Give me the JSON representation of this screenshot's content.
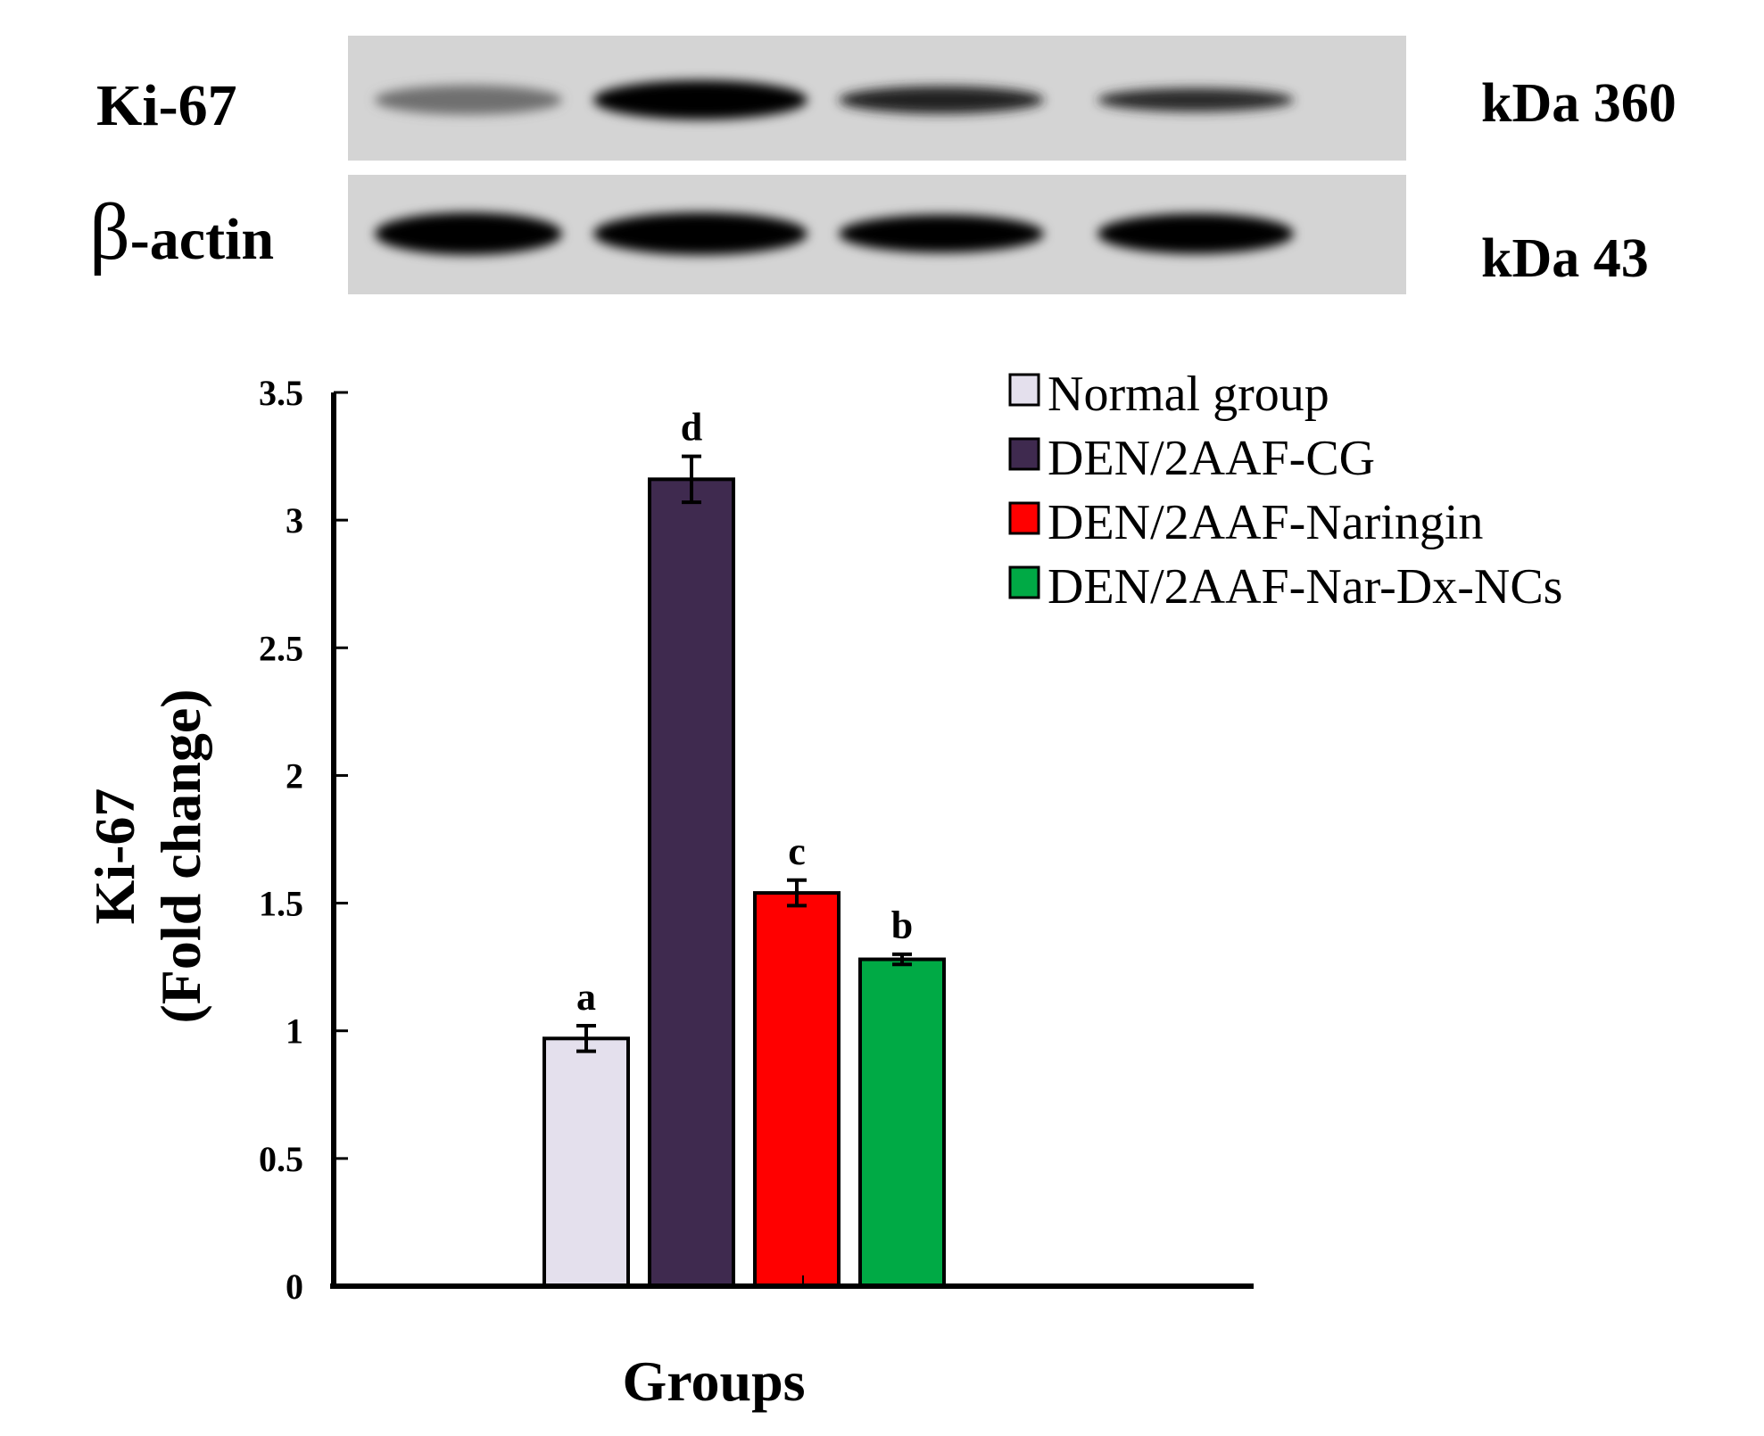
{
  "blot": {
    "rows": [
      {
        "label": "Ki-67",
        "kda": "kDa 360",
        "band_intensity": [
          0.45,
          1.0,
          0.85,
          0.8
        ],
        "band_thickness": [
          0.75,
          1.0,
          0.7,
          0.6
        ]
      },
      {
        "label_prefix": "β",
        "label": "-actin",
        "kda": "kDa 43",
        "band_intensity": [
          1.0,
          1.0,
          1.0,
          1.0
        ],
        "band_thickness": [
          0.95,
          0.95,
          0.85,
          0.9
        ]
      }
    ],
    "background": "#d4d4d4"
  },
  "chart_data": {
    "type": "bar",
    "categories": [
      "Normal group",
      "DEN/2AAF-CG",
      "DEN/2AAF-Naringin",
      "DEN/2AAF-Nar-Dx-NCs"
    ],
    "series": [
      {
        "values": [
          0.97,
          3.16,
          1.54,
          1.28
        ],
        "errors": [
          0.05,
          0.09,
          0.05,
          0.02
        ],
        "significance": [
          "a",
          "d",
          "c",
          "b"
        ],
        "colors": [
          "#e4e0ed",
          "#3f2a4f",
          "#ff0000",
          "#00aa45"
        ]
      }
    ],
    "legend": [
      "Normal group",
      "DEN/2AAF-CG",
      "DEN/2AAF-Naringin",
      "DEN/2AAF-Nar-Dx-NCs"
    ],
    "legend_position": "top-right",
    "xlabel": "Groups",
    "ylabel_line1": "Ki-67",
    "ylabel_line2": "(Fold change)",
    "ylim": [
      0,
      3.5
    ],
    "yticks": [
      "0",
      "0.5",
      "1",
      "1.5",
      "2",
      "2.5",
      "3",
      "3.5"
    ],
    "grid": false
  }
}
